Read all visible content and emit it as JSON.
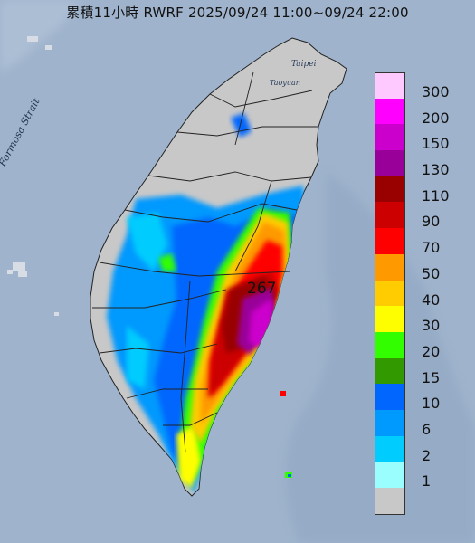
{
  "title": "累積11小時 RWRF 2025/09/24 11:00~09/24 22:00",
  "map": {
    "sea_label": "Formosa Strait",
    "city_labels": [
      "Taipei",
      "Taoyuan"
    ],
    "max_rainfall_value": "267",
    "colors": {
      "sea": "#9fb3cc",
      "land_no_rain": "#c8c8c8"
    }
  },
  "legend": {
    "items": [
      {
        "label": "300",
        "color": "#fec9fe"
      },
      {
        "label": "200",
        "color": "#fe00fe"
      },
      {
        "label": "150",
        "color": "#cc00cc"
      },
      {
        "label": "130",
        "color": "#990099"
      },
      {
        "label": "110",
        "color": "#990000"
      },
      {
        "label": "90",
        "color": "#cc0000"
      },
      {
        "label": "70",
        "color": "#fe0000"
      },
      {
        "label": "50",
        "color": "#fe9900"
      },
      {
        "label": "40",
        "color": "#fecc00"
      },
      {
        "label": "30",
        "color": "#fefe00"
      },
      {
        "label": "20",
        "color": "#33fe00"
      },
      {
        "label": "15",
        "color": "#339900"
      },
      {
        "label": "10",
        "color": "#0066fe"
      },
      {
        "label": "6",
        "color": "#0099fe"
      },
      {
        "label": "2",
        "color": "#00ccfe"
      },
      {
        "label": "1",
        "color": "#9bfefe"
      },
      {
        "label": "",
        "color": "#c8c8c8"
      }
    ]
  }
}
